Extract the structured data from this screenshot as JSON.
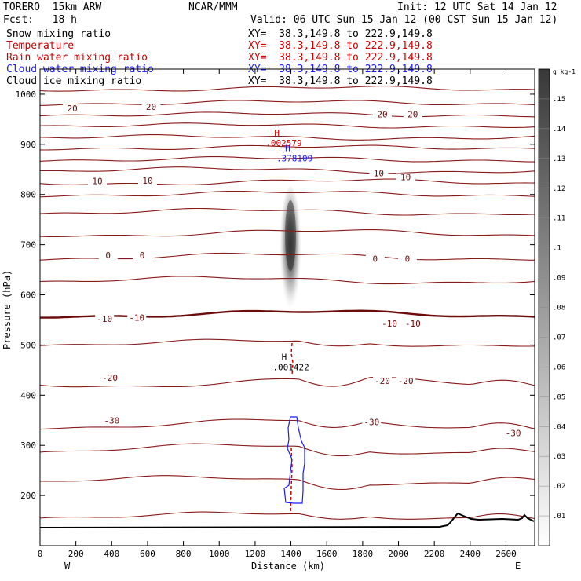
{
  "header": {
    "model": "TORERO  15km ARW",
    "org": "NCAR/MMM",
    "init": "Init: 12 UTC Sat 14 Jan 12",
    "fcst": "Fcst:   18 h",
    "valid": "Valid: 06 UTC Sun 15 Jan 12 (00 CST Sun 15 Jan 12)"
  },
  "legend": [
    {
      "label": "Snow mixing ratio",
      "color": "#000000",
      "xy": "XY=  38.3,149.8 to 222.9,149.8"
    },
    {
      "label": "Temperature",
      "color": "#cc0000",
      "xy": "XY=  38.3,149.8 to 222.9,149.8"
    },
    {
      "label": "Rain water mixing ratio",
      "color": "#cc0000",
      "xy": "XY=  38.3,149.8 to 222.9,149.8"
    },
    {
      "label": "Cloud water mixing ratio",
      "color": "#1a1aff",
      "xy": "XY=  38.3,149.8 to 222.9,149.8"
    },
    {
      "label": "Cloud ice mixing ratio",
      "color": "#000000",
      "xy": "XY=  38.3,149.8 to 222.9,149.8"
    }
  ],
  "chart_data": {
    "type": "cross-section",
    "xlabel": "Distance (km)",
    "ylabel": "Pressure (hPa)",
    "xlim": [
      0,
      2760
    ],
    "ylim": [
      1050,
      100
    ],
    "x_ticks": [
      0,
      200,
      400,
      600,
      800,
      1000,
      1200,
      1400,
      1600,
      1800,
      2000,
      2200,
      2400,
      2600
    ],
    "y_ticks": [
      200,
      300,
      400,
      500,
      600,
      700,
      800,
      900,
      1000
    ],
    "left_end": "W",
    "right_end": "E",
    "colorbar": {
      "units": "g kg-1",
      "ticks": [
        ".01",
        ".02",
        ".03",
        ".04",
        ".05",
        ".06",
        ".07",
        ".08",
        ".09",
        ".1",
        ".11",
        ".12",
        ".13",
        ".14",
        ".15"
      ]
    },
    "temperature_labels": [
      {
        "text": "-30",
        "x": 400,
        "p": 345
      },
      {
        "text": "-30",
        "x": 1850,
        "p": 342
      },
      {
        "text": "-30",
        "x": 2640,
        "p": 320
      },
      {
        "text": "-20",
        "x": 390,
        "p": 430
      },
      {
        "text": "-20",
        "x": 1910,
        "p": 424
      },
      {
        "text": "-20",
        "x": 2040,
        "p": 424
      },
      {
        "text": "-10",
        "x": 360,
        "p": 548
      },
      {
        "text": "-10",
        "x": 540,
        "p": 550
      },
      {
        "text": "-10",
        "x": 1950,
        "p": 538
      },
      {
        "text": "-10",
        "x": 2080,
        "p": 538
      },
      {
        "text": "0",
        "x": 380,
        "p": 674
      },
      {
        "text": "0",
        "x": 570,
        "p": 674
      },
      {
        "text": "0",
        "x": 1870,
        "p": 667
      },
      {
        "text": "0",
        "x": 2050,
        "p": 667
      },
      {
        "text": "10",
        "x": 320,
        "p": 822
      },
      {
        "text": "10",
        "x": 600,
        "p": 823
      },
      {
        "text": "10",
        "x": 1890,
        "p": 838
      },
      {
        "text": "10",
        "x": 2040,
        "p": 830
      },
      {
        "text": "20",
        "x": 180,
        "p": 967
      },
      {
        "text": "20",
        "x": 620,
        "p": 970
      },
      {
        "text": "20",
        "x": 1910,
        "p": 955
      },
      {
        "text": "20",
        "x": 2080,
        "p": 955
      }
    ],
    "maxima": [
      {
        "mark": "H",
        "value": ".001422",
        "field": "Snow mixing ratio",
        "color": "#000000",
        "x": 1400,
        "p": 456
      },
      {
        "mark": "H",
        "value": ".378109",
        "field": "Cloud water mixing ratio",
        "color": "#1a1aff",
        "x": 1420,
        "p": 872
      },
      {
        "mark": "H",
        "value": ".002579",
        "field": "Rain water mixing ratio",
        "color": "#cc0000",
        "x": 1360,
        "p": 903
      }
    ]
  }
}
